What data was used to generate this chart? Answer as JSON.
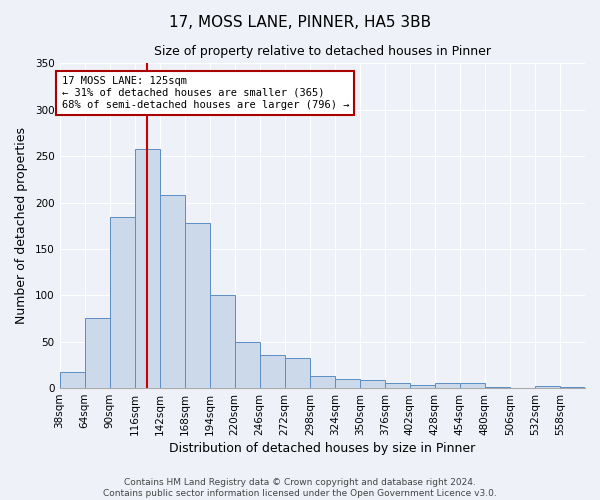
{
  "title": "17, MOSS LANE, PINNER, HA5 3BB",
  "subtitle": "Size of property relative to detached houses in Pinner",
  "xlabel": "Distribution of detached houses by size in Pinner",
  "ylabel": "Number of detached properties",
  "bar_labels": [
    "38sqm",
    "64sqm",
    "90sqm",
    "116sqm",
    "142sqm",
    "168sqm",
    "194sqm",
    "220sqm",
    "246sqm",
    "272sqm",
    "298sqm",
    "324sqm",
    "350sqm",
    "376sqm",
    "402sqm",
    "428sqm",
    "454sqm",
    "480sqm",
    "506sqm",
    "532sqm",
    "558sqm"
  ],
  "bar_values": [
    17,
    76,
    184,
    258,
    208,
    178,
    100,
    50,
    36,
    32,
    13,
    10,
    9,
    5,
    3,
    5,
    5,
    1,
    0,
    2,
    1
  ],
  "bar_color": "#ccd9ea",
  "bar_edge_color": "#5b8ec4",
  "ylim": [
    0,
    350
  ],
  "yticks": [
    0,
    50,
    100,
    150,
    200,
    250,
    300,
    350
  ],
  "vline_x_index": 3.5,
  "vline_color": "#cc0000",
  "annotation_title": "17 MOSS LANE: 125sqm",
  "annotation_line1": "← 31% of detached houses are smaller (365)",
  "annotation_line2": "68% of semi-detached houses are larger (796) →",
  "annotation_box_edgecolor": "#aa0000",
  "footer_line1": "Contains HM Land Registry data © Crown copyright and database right 2024.",
  "footer_line2": "Contains public sector information licensed under the Open Government Licence v3.0.",
  "bg_color": "#eef2f8",
  "plot_bg_color": "#eef2f8",
  "grid_color": "#ffffff",
  "title_fontsize": 11,
  "subtitle_fontsize": 9,
  "axis_label_fontsize": 9,
  "tick_fontsize": 7.5,
  "footer_fontsize": 6.5
}
